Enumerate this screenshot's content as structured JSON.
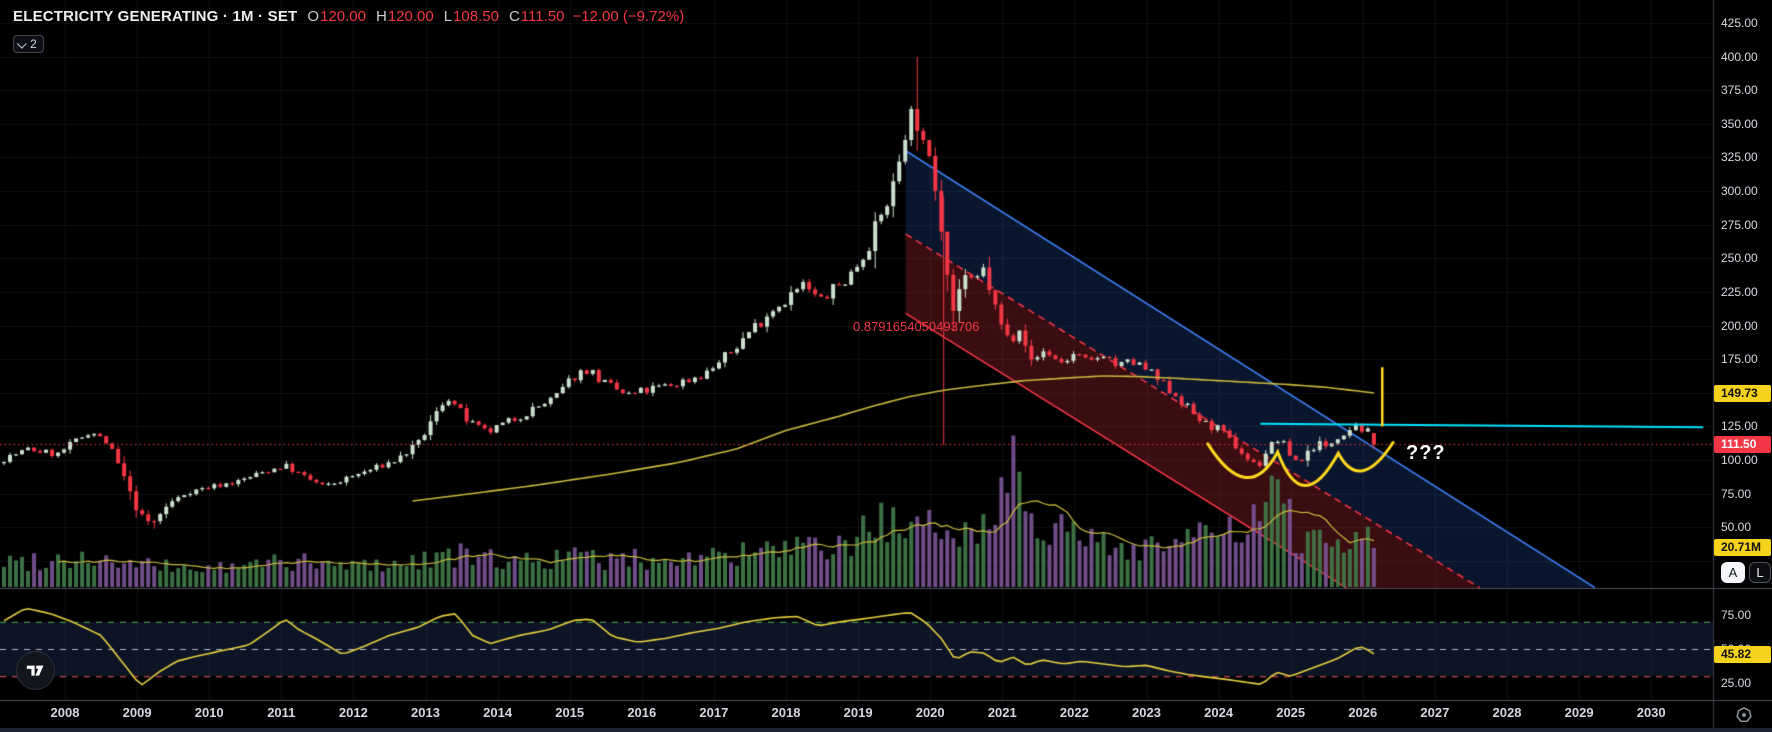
{
  "header": {
    "title": "ELECTRICITY GENERATING · 1M · SET",
    "ohlc": {
      "open_label": "O",
      "open": "120.00",
      "high_label": "H",
      "high": "120.00",
      "low_label": "L",
      "low": "108.50",
      "close_label": "C",
      "close": "111.50",
      "change": "−12.00 (−9.72%)"
    },
    "collapse_count": "2"
  },
  "price_axis": {
    "ticks": [
      425,
      400,
      375,
      350,
      325,
      300,
      275,
      250,
      225,
      200,
      175,
      150,
      125,
      100,
      75,
      50
    ],
    "ma_label": "149.73",
    "last_price_label": "111.50",
    "volume_label": "20.71M",
    "auto_button": "A",
    "log_button": "L"
  },
  "rsi_axis": {
    "ticks": [
      75,
      50,
      25
    ],
    "value_label": "45.82"
  },
  "time_axis": {
    "years": [
      2008,
      2009,
      2010,
      2011,
      2012,
      2013,
      2014,
      2015,
      2016,
      2017,
      2018,
      2019,
      2020,
      2021,
      2022,
      2023,
      2024,
      2025,
      2026,
      2027,
      2028,
      2029,
      2030
    ]
  },
  "annotations": {
    "ratio_text": "0.8791654050493706",
    "question_text": "???"
  },
  "colors": {
    "bg": "#000000",
    "grid": "rgba(134,150,178,0.10)",
    "up": "#cbdfcd",
    "down": "#f23645",
    "vol_up": "#41794a",
    "vol_down": "#7a5494",
    "ma": "#c8b93b",
    "vol_ma": "#c8b93b",
    "rsi_line": "#e5cf3e",
    "drawing_yellow": "#ffd91e",
    "cyan": "#00e5ff",
    "channel_blue": "#3c7dee",
    "channel_red": "#f23645",
    "fill_blue": "rgba(49,110,230,0.20)",
    "fill_red": "rgba(242,54,69,0.24)",
    "band_fill": "rgba(58,90,172,0.22)",
    "rsi_green": "#4caf50",
    "rsi_red": "#f7525f",
    "rsi_mid": "#b5b9c3",
    "separator": "#50535c",
    "axis_border": "#3c404b",
    "bottom_strip": "#1d2434",
    "chip_yellow": "#f5d21b",
    "chip_red": "#f23645"
  },
  "chart_data": {
    "type": "candlestick",
    "symbol": "ELECTRICITY GENERATING",
    "exchange": "SET",
    "timeframe": "1M",
    "title": "ELECTRICITY GENERATING · 1M · SET",
    "x_domain_years": [
      2007.1,
      2030.75
    ],
    "price_ticks": [
      50,
      75,
      100,
      125,
      150,
      175,
      200,
      225,
      250,
      275,
      300,
      325,
      350,
      375,
      400,
      425
    ],
    "grid": true,
    "last_bar": {
      "open": 120.0,
      "high": 120.0,
      "low": 108.5,
      "close": 111.5,
      "change": -12.0,
      "change_pct": -9.72,
      "volume_m": 20.71
    },
    "prev_close": 123.5,
    "price_line_level": 111.5,
    "ma_last_value": 149.73,
    "rsi_last_value": 45.82,
    "rsi_levels": [
      70,
      50,
      30
    ],
    "close_anchors": [
      [
        2007.1,
        100
      ],
      [
        2007.5,
        108
      ],
      [
        2007.9,
        104
      ],
      [
        2008.35,
        122
      ],
      [
        2008.6,
        112
      ],
      [
        2008.8,
        90
      ],
      [
        2009.0,
        62
      ],
      [
        2009.2,
        52
      ],
      [
        2009.45,
        68
      ],
      [
        2009.7,
        76
      ],
      [
        2010.0,
        80
      ],
      [
        2010.4,
        84
      ],
      [
        2010.8,
        92
      ],
      [
        2011.05,
        96
      ],
      [
        2011.3,
        88
      ],
      [
        2011.6,
        80
      ],
      [
        2011.9,
        86
      ],
      [
        2012.2,
        92
      ],
      [
        2012.6,
        100
      ],
      [
        2012.9,
        112
      ],
      [
        2013.1,
        130
      ],
      [
        2013.3,
        148
      ],
      [
        2013.6,
        128
      ],
      [
        2013.85,
        120
      ],
      [
        2014.1,
        127
      ],
      [
        2014.5,
        138
      ],
      [
        2014.8,
        146
      ],
      [
        2015.05,
        162
      ],
      [
        2015.25,
        168
      ],
      [
        2015.5,
        156
      ],
      [
        2015.8,
        148
      ],
      [
        2016.1,
        152
      ],
      [
        2016.5,
        157
      ],
      [
        2016.9,
        165
      ],
      [
        2017.2,
        178
      ],
      [
        2017.5,
        196
      ],
      [
        2017.8,
        212
      ],
      [
        2018.05,
        222
      ],
      [
        2018.25,
        230
      ],
      [
        2018.45,
        218
      ],
      [
        2018.65,
        226
      ],
      [
        2018.9,
        238
      ],
      [
        2019.1,
        256
      ],
      [
        2019.3,
        278
      ],
      [
        2019.5,
        305
      ],
      [
        2019.65,
        345
      ],
      [
        2019.78,
        362
      ],
      [
        2019.9,
        332
      ],
      [
        2020.05,
        312
      ],
      [
        2020.2,
        258
      ],
      [
        2020.33,
        208
      ],
      [
        2020.45,
        240
      ],
      [
        2020.6,
        228
      ],
      [
        2020.75,
        242
      ],
      [
        2020.95,
        204
      ],
      [
        2021.1,
        188
      ],
      [
        2021.25,
        202
      ],
      [
        2021.4,
        172
      ],
      [
        2021.6,
        182
      ],
      [
        2021.8,
        172
      ],
      [
        2022.0,
        178
      ],
      [
        2022.2,
        171
      ],
      [
        2022.4,
        180
      ],
      [
        2022.6,
        169
      ],
      [
        2022.8,
        173
      ],
      [
        2023.0,
        167
      ],
      [
        2023.2,
        157
      ],
      [
        2023.4,
        149
      ],
      [
        2023.6,
        137
      ],
      [
        2023.8,
        127
      ],
      [
        2024.0,
        123
      ],
      [
        2024.2,
        112
      ],
      [
        2024.4,
        101
      ],
      [
        2024.55,
        95
      ],
      [
        2024.7,
        110
      ],
      [
        2024.85,
        116
      ],
      [
        2025.0,
        103
      ],
      [
        2025.12,
        98
      ],
      [
        2025.25,
        107
      ],
      [
        2025.4,
        113
      ],
      [
        2025.5,
        108
      ],
      [
        2025.62,
        117
      ],
      [
        2025.75,
        121
      ],
      [
        2025.9,
        127
      ],
      [
        2026.0,
        122
      ],
      [
        2026.08,
        123.5
      ],
      [
        2026.17,
        111.5
      ]
    ],
    "wick_overrides": [
      [
        2019.78,
        400,
        330
      ],
      [
        2020.33,
        null,
        196
      ],
      [
        2009.2,
        null,
        49
      ]
    ],
    "ma_anchors": [
      [
        2012.74,
        69
      ],
      [
        2013.5,
        74
      ],
      [
        2014.5,
        81
      ],
      [
        2015.5,
        89
      ],
      [
        2016.5,
        98
      ],
      [
        2017.3,
        108
      ],
      [
        2018.0,
        122
      ],
      [
        2018.7,
        132
      ],
      [
        2019.2,
        140
      ],
      [
        2019.7,
        147
      ],
      [
        2020.2,
        152
      ],
      [
        2020.8,
        156
      ],
      [
        2021.3,
        159
      ],
      [
        2021.9,
        161
      ],
      [
        2022.4,
        162.5
      ],
      [
        2022.9,
        162
      ],
      [
        2023.5,
        160.5
      ],
      [
        2024.0,
        159
      ],
      [
        2024.5,
        157.5
      ],
      [
        2025.0,
        156
      ],
      [
        2025.5,
        154
      ],
      [
        2025.9,
        151.5
      ],
      [
        2026.17,
        149.73
      ]
    ],
    "volume_anchors_millions": [
      [
        2007.1,
        13
      ],
      [
        2007.8,
        15
      ],
      [
        2008.3,
        16
      ],
      [
        2008.8,
        12
      ],
      [
        2009.2,
        11
      ],
      [
        2009.8,
        10
      ],
      [
        2010.4,
        10
      ],
      [
        2011.0,
        15
      ],
      [
        2011.6,
        11
      ],
      [
        2012.2,
        12
      ],
      [
        2012.8,
        13
      ],
      [
        2013.2,
        18
      ],
      [
        2013.8,
        15
      ],
      [
        2014.4,
        14
      ],
      [
        2015.0,
        16
      ],
      [
        2015.6,
        14
      ],
      [
        2016.2,
        15
      ],
      [
        2016.8,
        16
      ],
      [
        2017.4,
        17
      ],
      [
        2018.0,
        20
      ],
      [
        2018.6,
        19
      ],
      [
        2019.0,
        24
      ],
      [
        2019.25,
        42
      ],
      [
        2019.5,
        30
      ],
      [
        2019.9,
        26
      ],
      [
        2020.2,
        38
      ],
      [
        2020.5,
        30
      ],
      [
        2020.9,
        34
      ],
      [
        2021.05,
        76
      ],
      [
        2021.2,
        60
      ],
      [
        2021.4,
        46
      ],
      [
        2021.6,
        36
      ],
      [
        2021.9,
        28
      ],
      [
        2022.3,
        23
      ],
      [
        2022.7,
        21
      ],
      [
        2023.1,
        23
      ],
      [
        2023.5,
        26
      ],
      [
        2023.9,
        26
      ],
      [
        2024.2,
        29
      ],
      [
        2024.5,
        32
      ],
      [
        2024.75,
        50
      ],
      [
        2024.9,
        38
      ],
      [
        2025.1,
        28
      ],
      [
        2025.4,
        24
      ],
      [
        2025.7,
        25
      ],
      [
        2025.95,
        30
      ],
      [
        2026.1,
        31
      ],
      [
        2026.17,
        20.71
      ]
    ],
    "rsi_anchors": [
      [
        2007.1,
        69
      ],
      [
        2007.45,
        80
      ],
      [
        2007.8,
        76
      ],
      [
        2008.1,
        70
      ],
      [
        2008.5,
        60
      ],
      [
        2008.8,
        40
      ],
      [
        2009.05,
        23
      ],
      [
        2009.3,
        33
      ],
      [
        2009.55,
        41
      ],
      [
        2009.85,
        45
      ],
      [
        2010.2,
        49
      ],
      [
        2010.55,
        53
      ],
      [
        2010.85,
        64
      ],
      [
        2011.05,
        72
      ],
      [
        2011.25,
        64
      ],
      [
        2011.5,
        57
      ],
      [
        2011.85,
        46
      ],
      [
        2012.15,
        52
      ],
      [
        2012.5,
        60
      ],
      [
        2012.9,
        66
      ],
      [
        2013.2,
        74
      ],
      [
        2013.42,
        76
      ],
      [
        2013.65,
        60
      ],
      [
        2013.9,
        54
      ],
      [
        2014.3,
        60
      ],
      [
        2014.7,
        64
      ],
      [
        2015.05,
        71
      ],
      [
        2015.3,
        72
      ],
      [
        2015.6,
        59
      ],
      [
        2015.95,
        55
      ],
      [
        2016.35,
        58
      ],
      [
        2016.7,
        62
      ],
      [
        2017.05,
        65
      ],
      [
        2017.45,
        70
      ],
      [
        2017.85,
        73
      ],
      [
        2018.15,
        74
      ],
      [
        2018.45,
        67
      ],
      [
        2018.75,
        70
      ],
      [
        2019.05,
        72
      ],
      [
        2019.45,
        75
      ],
      [
        2019.72,
        77
      ],
      [
        2019.95,
        69
      ],
      [
        2020.15,
        58
      ],
      [
        2020.35,
        42
      ],
      [
        2020.55,
        48
      ],
      [
        2020.75,
        47
      ],
      [
        2020.95,
        40
      ],
      [
        2021.15,
        44
      ],
      [
        2021.35,
        38
      ],
      [
        2021.55,
        42
      ],
      [
        2021.85,
        39
      ],
      [
        2022.1,
        41
      ],
      [
        2022.4,
        39
      ],
      [
        2022.7,
        37
      ],
      [
        2023.0,
        38
      ],
      [
        2023.3,
        34
      ],
      [
        2023.6,
        31
      ],
      [
        2023.9,
        29
      ],
      [
        2024.2,
        27
      ],
      [
        2024.45,
        25
      ],
      [
        2024.6,
        24
      ],
      [
        2024.8,
        33
      ],
      [
        2025.0,
        30
      ],
      [
        2025.2,
        34
      ],
      [
        2025.45,
        39
      ],
      [
        2025.65,
        43
      ],
      [
        2025.85,
        49
      ],
      [
        2025.95,
        52
      ],
      [
        2026.05,
        50
      ],
      [
        2026.17,
        45.82
      ]
    ],
    "drawings": {
      "channel_top": [
        [
          2019.66,
          330
        ],
        [
          2029.22,
          5
        ]
      ],
      "channel_mid": [
        [
          2019.66,
          268
        ],
        [
          2027.62,
          5
        ]
      ],
      "channel_bottom": [
        [
          2019.66,
          209
        ],
        [
          2025.77,
          5
        ]
      ],
      "cyan_trendline": [
        [
          2024.58,
          127
        ],
        [
          2030.72,
          124.3
        ]
      ],
      "yellow_vline": {
        "year": 2026.27,
        "price_from": 125,
        "price_to": 169
      },
      "ratio_vline": {
        "year": 2020.18,
        "price_from": 296,
        "price_to": 111
      },
      "cup_arcs": [
        [
          [
            2023.85,
            112
          ],
          [
            2024.37,
            87
          ],
          [
            2024.82,
            106
          ]
        ],
        [
          [
            2024.82,
            106
          ],
          [
            2025.2,
            81
          ],
          [
            2025.66,
            105
          ]
        ],
        [
          [
            2025.66,
            105
          ],
          [
            2026.0,
            92
          ],
          [
            2026.42,
            113
          ]
        ]
      ]
    }
  }
}
